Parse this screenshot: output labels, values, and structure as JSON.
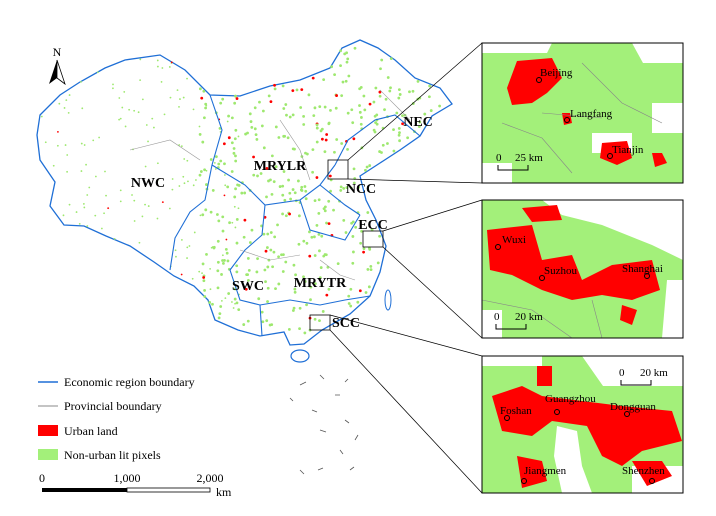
{
  "north_label": "N",
  "regions": [
    "NWC",
    "MRYLR",
    "NEC",
    "NCC",
    "ECC",
    "SWC",
    "MRYTR",
    "SCC"
  ],
  "insets": [
    {
      "scale_start": "0",
      "scale_end": "25 km",
      "cities": [
        "Beijing",
        "Langfang",
        "Tianjin"
      ]
    },
    {
      "scale_start": "0",
      "scale_end": "20 km",
      "cities": [
        "Wuxi",
        "Suzhou",
        "Shanghai"
      ]
    },
    {
      "scale_start": "0",
      "scale_end": "20 km",
      "cities": [
        "Guangzhou",
        "Foshan",
        "Dongguan",
        "Jiangmen",
        "Shenzhen"
      ]
    }
  ],
  "legend": [
    "Economic region boundary",
    "Provincial boundary",
    "Urban land",
    "Non-urban lit pixels"
  ],
  "scale_bar": {
    "labels": [
      "0",
      "1,000",
      "2,000"
    ],
    "unit": "km"
  }
}
